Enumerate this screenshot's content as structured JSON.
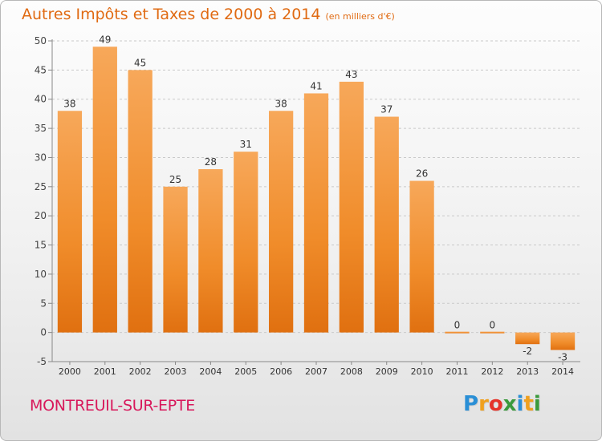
{
  "header": {
    "title": "Autres Impôts et Taxes de 2000 à 2014",
    "unit": "(en milliers d'€)"
  },
  "footer": {
    "commune": "MONTREUIL-SUR-EPTE",
    "logo_letters": [
      "P",
      "r",
      "o",
      "x",
      "i",
      "t",
      "i"
    ],
    "logo_colors": [
      "#2a8fd6",
      "#f0a01e",
      "#e5332a",
      "#3a9a3c",
      "#2a8fd6",
      "#f0a01e",
      "#3a9a3c"
    ]
  },
  "chart_data": {
    "type": "bar",
    "title": "Autres Impôts et Taxes de 2000 à 2014",
    "subtitle": "(en milliers d'€)",
    "categories": [
      "2000",
      "2001",
      "2002",
      "2003",
      "2004",
      "2005",
      "2006",
      "2007",
      "2008",
      "2009",
      "2010",
      "2011",
      "2012",
      "2013",
      "2014"
    ],
    "values": [
      38,
      49,
      45,
      25,
      28,
      31,
      38,
      41,
      43,
      37,
      26,
      0,
      0,
      -2,
      -3
    ],
    "value_labels": [
      "38",
      "49",
      "45",
      "25",
      "28",
      "31",
      "38",
      "41",
      "43",
      "37",
      "26",
      "0",
      "0",
      "-2",
      "-3"
    ],
    "yticks": [
      "-5",
      "0",
      "5",
      "10",
      "15",
      "20",
      "25",
      "30",
      "35",
      "40",
      "45",
      "50"
    ],
    "ylim": [
      -5,
      50
    ],
    "grid": "horizontal dashed",
    "bar_color": "#f08c2a",
    "bar_color_light": "#f7a85a",
    "bar_color_dark": "#e07010"
  }
}
